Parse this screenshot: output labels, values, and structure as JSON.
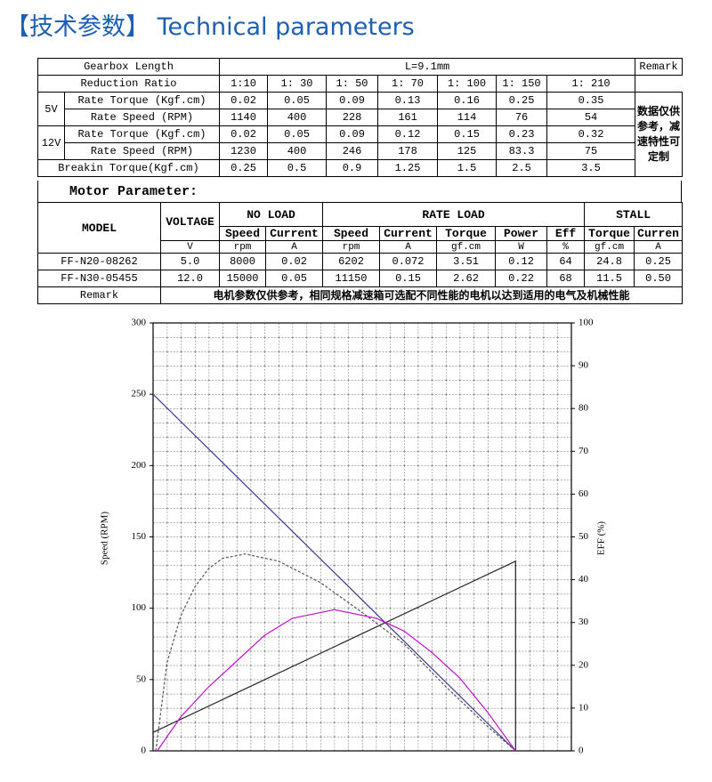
{
  "title": "【技术参数】 Technical parameters",
  "gearbox_table": {
    "header": [
      "Gearbox Length",
      "L=9.1mm",
      "Remark"
    ],
    "ratio_label": "Reduction Ratio",
    "ratios": [
      "1:10",
      "1: 30",
      "1: 50",
      "1: 70",
      "1: 100",
      "1: 150",
      "1: 210"
    ],
    "groups": [
      {
        "voltage": "5V",
        "rows": [
          {
            "label": "Rate Torque (Kgf.cm)",
            "values": [
              "0.02",
              "0.05",
              "0.09",
              "0.13",
              "0.16",
              "0.25",
              "0.35"
            ]
          },
          {
            "label": "Rate Speed (RPM)",
            "values": [
              "1140",
              "400",
              "228",
              "161",
              "114",
              "76",
              "54"
            ]
          }
        ]
      },
      {
        "voltage": "12V",
        "rows": [
          {
            "label": "Rate Torque (Kgf.cm)",
            "values": [
              "0.02",
              "0.05",
              "0.09",
              "0.12",
              "0.15",
              "0.23",
              "0.32"
            ]
          },
          {
            "label": "Rate Speed (RPM)",
            "values": [
              "1230",
              "400",
              "246",
              "178",
              "125",
              "83.3",
              "75"
            ]
          }
        ]
      }
    ],
    "breakin": {
      "label": "Breakin Torque(Kgf.cm)",
      "values": [
        "0.25",
        "0.5",
        "0.9",
        "1.25",
        "1.5",
        "2.5",
        "3.5"
      ]
    },
    "remark": "数据仅供参考，减速特性可定制"
  },
  "motor_table": {
    "title": "Motor Parameter:",
    "model": "MODEL",
    "voltage": "VOLTAGE",
    "groups": [
      "NO LOAD",
      "RATE LOAD",
      "STALL"
    ],
    "columns": [
      "Speed",
      "Current",
      "Speed",
      "Current",
      "Torque",
      "Power",
      "Eff",
      "Torque",
      "Curren"
    ],
    "units": [
      "V",
      "rpm",
      "A",
      "rpm",
      "A",
      "gf.cm",
      "W",
      "%",
      "gf.cm",
      "A"
    ],
    "rows": [
      [
        "FF-N20-08262",
        "5.0",
        "8000",
        "0.02",
        "6202",
        "0.072",
        "3.51",
        "0.12",
        "64",
        "24.8",
        "0.25"
      ],
      [
        "FF-N30-05455",
        "12.0",
        "15000",
        "0.05",
        "11150",
        "0.15",
        "2.62",
        "0.22",
        "68",
        "11.5",
        "0.50"
      ]
    ],
    "remark_label": "Remark",
    "remark": "电机参数仅供参考，相同规格减速箱可选配不同性能的电机以达到适用的电气及机械性能"
  },
  "chart_data": {
    "type": "line",
    "y_label": "Speed (RPM)",
    "y2_label": "EFF (%)",
    "xlim": [
      0,
      30
    ],
    "ylim": [
      0,
      300
    ],
    "yticks": [
      0,
      50,
      100,
      150,
      200,
      250,
      300
    ],
    "y2lim": [
      0,
      100
    ],
    "y2ticks": [
      0,
      10,
      20,
      30,
      40,
      50,
      60,
      70,
      80,
      90,
      100
    ],
    "grid": true,
    "series": [
      {
        "color": "#3b3b8f",
        "x": [
          0,
          26
        ],
        "values": [
          250,
          0
        ]
      },
      {
        "color": "#222222",
        "x": [
          0,
          26,
          26
        ],
        "values": [
          13,
          133,
          0
        ]
      },
      {
        "color": "#555555",
        "dashed": true,
        "x": [
          0.2,
          1,
          2,
          3,
          4,
          5,
          6.6,
          9,
          12,
          15,
          18,
          21,
          24,
          26
        ],
        "values": [
          0,
          62,
          95,
          115,
          128,
          135,
          138,
          133,
          118,
          97,
          75,
          45,
          17,
          0
        ]
      },
      {
        "color": "#c010c8",
        "axis": "y2",
        "x": [
          0.3,
          2,
          4,
          6,
          8,
          10,
          13,
          16,
          18,
          20,
          22,
          24,
          26
        ],
        "values": [
          0,
          8,
          15,
          21,
          27,
          31,
          33,
          31,
          28,
          23,
          17,
          9,
          0
        ]
      }
    ]
  }
}
